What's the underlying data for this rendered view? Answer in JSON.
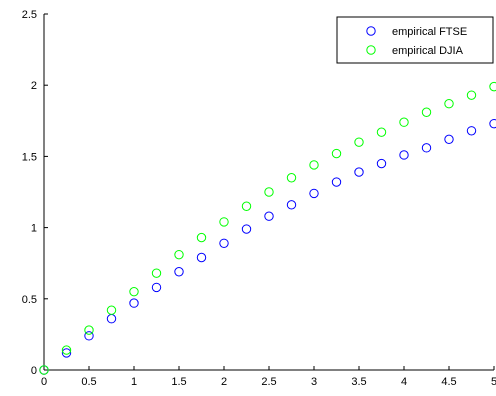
{
  "chart_data": {
    "type": "scatter",
    "title": "",
    "xlabel": "",
    "ylabel": "",
    "xlim": [
      0,
      5
    ],
    "ylim": [
      0,
      2.5
    ],
    "x_ticks": [
      {
        "value": 0,
        "label": "0"
      },
      {
        "value": 0.5,
        "label": "0.5"
      },
      {
        "value": 1,
        "label": "1"
      },
      {
        "value": 1.5,
        "label": "1.5"
      },
      {
        "value": 2,
        "label": "2"
      },
      {
        "value": 2.5,
        "label": "2.5"
      },
      {
        "value": 3,
        "label": "3"
      },
      {
        "value": 3.5,
        "label": "3.5"
      },
      {
        "value": 4,
        "label": "4"
      },
      {
        "value": 4.5,
        "label": "4.5"
      },
      {
        "value": 5,
        "label": "5"
      }
    ],
    "y_ticks": [
      {
        "value": 0,
        "label": "0"
      },
      {
        "value": 0.5,
        "label": "0.5"
      },
      {
        "value": 1,
        "label": "1"
      },
      {
        "value": 1.5,
        "label": "1.5"
      },
      {
        "value": 2,
        "label": "2"
      },
      {
        "value": 2.5,
        "label": "2.5"
      }
    ],
    "grid": false,
    "legend_position": "top-right",
    "marker": "open-circle",
    "series": [
      {
        "name": "empirical FTSE",
        "color": "#0000ff",
        "x": [
          0,
          0.25,
          0.5,
          0.75,
          1,
          1.25,
          1.5,
          1.75,
          2,
          2.25,
          2.5,
          2.75,
          3,
          3.25,
          3.5,
          3.75,
          4,
          4.25,
          4.5,
          4.75,
          5
        ],
        "y": [
          0,
          0.12,
          0.24,
          0.36,
          0.47,
          0.58,
          0.69,
          0.79,
          0.89,
          0.99,
          1.08,
          1.16,
          1.24,
          1.32,
          1.39,
          1.45,
          1.51,
          1.56,
          1.62,
          1.68,
          1.73
        ]
      },
      {
        "name": "empirical DJIA",
        "color": "#00ff00",
        "x": [
          0,
          0.25,
          0.5,
          0.75,
          1,
          1.25,
          1.5,
          1.75,
          2,
          2.25,
          2.5,
          2.75,
          3,
          3.25,
          3.5,
          3.75,
          4,
          4.25,
          4.5,
          4.75,
          5
        ],
        "y": [
          0,
          0.14,
          0.28,
          0.42,
          0.55,
          0.68,
          0.81,
          0.93,
          1.04,
          1.15,
          1.25,
          1.35,
          1.44,
          1.52,
          1.6,
          1.67,
          1.74,
          1.81,
          1.87,
          1.93,
          1.99
        ]
      }
    ]
  }
}
